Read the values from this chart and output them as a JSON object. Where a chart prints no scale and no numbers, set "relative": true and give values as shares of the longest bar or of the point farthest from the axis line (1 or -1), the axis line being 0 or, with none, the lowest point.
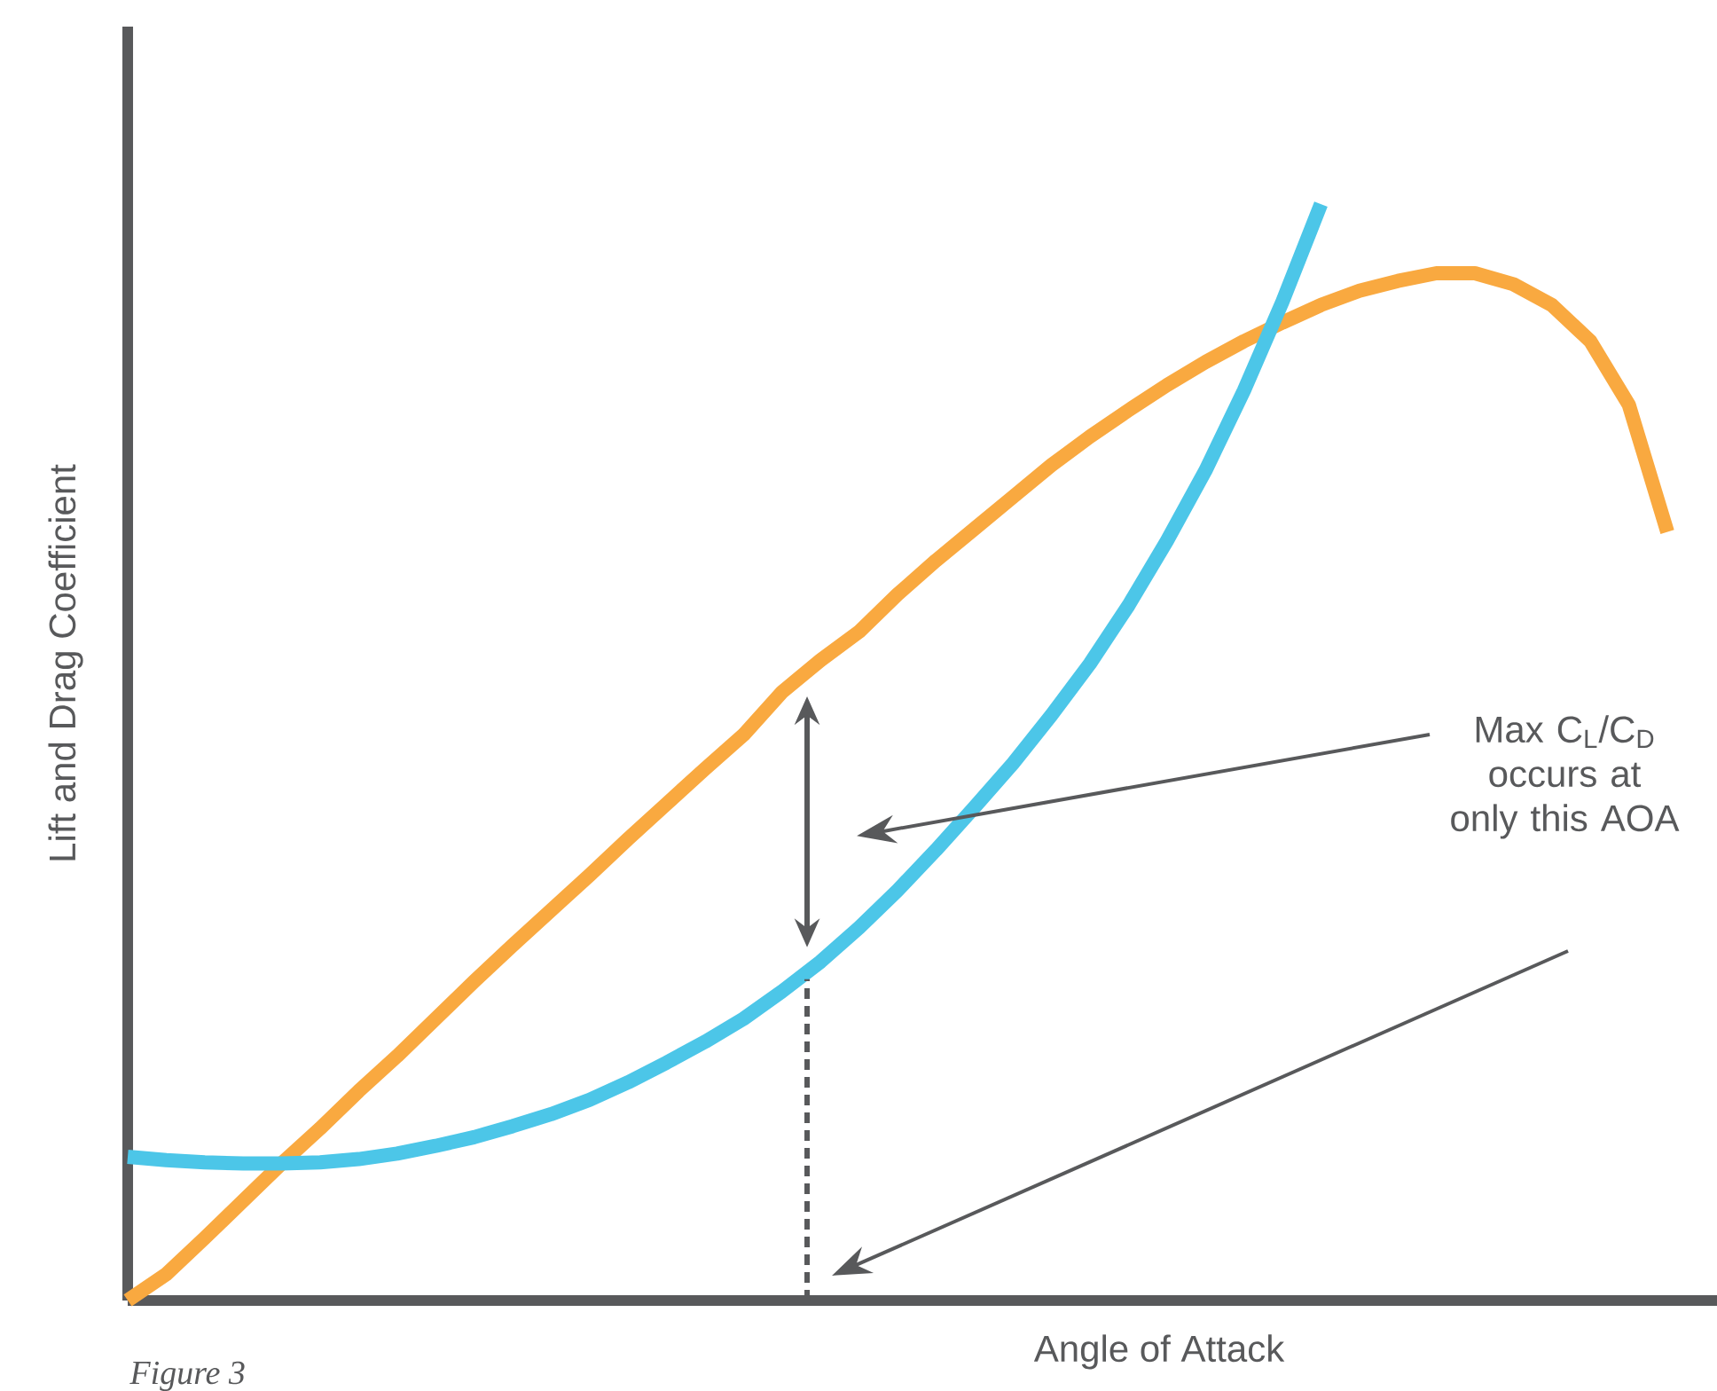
{
  "chart_data": {
    "type": "line",
    "relative": true,
    "xlabel": "Angle of Attack",
    "ylabel": "Lift and Drag Coefficient",
    "categories": [
      null,
      null,
      null,
      null,
      null,
      null,
      null,
      null,
      null,
      null,
      null,
      null,
      null,
      null,
      null,
      null,
      null,
      null,
      null,
      null,
      null,
      null,
      null,
      null,
      null,
      null,
      null,
      null,
      null,
      null,
      null,
      null,
      null,
      null,
      null,
      null,
      null,
      null,
      null,
      null,
      null
    ],
    "series": [
      {
        "color": "#f9a940",
        "values": [
          0,
          0.024,
          0.057,
          0.091,
          0.125,
          0.157,
          0.191,
          0.223,
          0.257,
          0.291,
          0.324,
          0.356,
          0.388,
          0.421,
          0.453,
          0.485,
          0.516,
          0.555,
          0.584,
          0.61,
          0.644,
          0.675,
          0.704,
          0.733,
          0.762,
          0.788,
          0.812,
          0.835,
          0.856,
          0.875,
          0.892,
          0.908,
          0.921,
          0.93,
          0.937,
          0.937,
          0.927,
          0.908,
          0.875,
          0.817,
          0.701
        ]
      },
      {
        "color": "#4cc6e8",
        "values": [
          0.131,
          0.128,
          0.126,
          0.125,
          0.125,
          0.126,
          0.129,
          0.134,
          0.141,
          0.149,
          0.159,
          0.17,
          0.183,
          0.199,
          0.217,
          0.236,
          0.257,
          0.282,
          0.309,
          0.34,
          0.374,
          0.411,
          0.45,
          0.49,
          0.534,
          0.581,
          0.634,
          0.693,
          0.757,
          0.83,
          0.911,
          1,
          null,
          null,
          null,
          null,
          null,
          null,
          null,
          null,
          null
        ]
      }
    ],
    "annotations": [
      "Max C$_{L}$/C$_{D}$ occurs at only this AOA",
      "*Figure 3*"
    ]
  }
}
